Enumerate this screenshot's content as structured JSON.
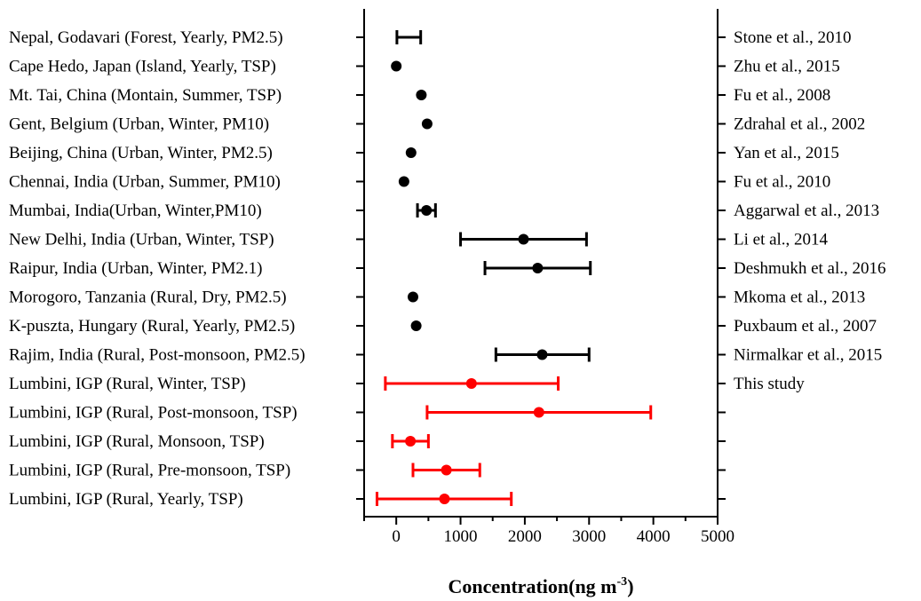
{
  "chart_data": {
    "type": "scatter",
    "subtype": "horizontal error-bar (forest) plot",
    "title": "",
    "xlabel": "Concentration(ng m-3)",
    "xlabel_parts": {
      "main": "Concentration(ng m",
      "sup": "-3",
      "close": ")"
    },
    "ylabel": "",
    "xlim": [
      -500,
      5000
    ],
    "xticks": [
      0,
      1000,
      2000,
      3000,
      4000,
      5000
    ],
    "minor_xticks": [
      -500,
      500,
      1500,
      2500,
      3500,
      4500
    ],
    "grid": false,
    "legend": "none",
    "colors": {
      "literature": "#000000",
      "this_study": "#ff0000"
    },
    "rows": [
      {
        "label": "Nepal, Godavari (Forest, Yearly, PM2.5)",
        "reference": "Stone et al., 2010",
        "value": 180,
        "err_low": 10,
        "err_high": 380,
        "color": "#000000",
        "marker": false
      },
      {
        "label": "Cape Hedo, Japan (Island, Yearly, TSP)",
        "reference": "Zhu et al., 2015",
        "value": 0,
        "err_low": null,
        "err_high": null,
        "color": "#000000",
        "marker": true
      },
      {
        "label": "Mt. Tai, China (Montain, Summer, TSP)",
        "reference": "Fu et al., 2008",
        "value": 390,
        "err_low": null,
        "err_high": null,
        "color": "#000000",
        "marker": true
      },
      {
        "label": "Gent, Belgium (Urban, Winter, PM10)",
        "reference": "Zdrahal et al., 2002",
        "value": 480,
        "err_low": null,
        "err_high": null,
        "color": "#000000",
        "marker": true
      },
      {
        "label": "Beijing, China (Urban, Winter, PM2.5)",
        "reference": "Yan et al., 2015",
        "value": 230,
        "err_low": null,
        "err_high": null,
        "color": "#000000",
        "marker": true
      },
      {
        "label": "Chennai, India (Urban, Summer, PM10)",
        "reference": "Fu et al., 2010",
        "value": 120,
        "err_low": null,
        "err_high": null,
        "color": "#000000",
        "marker": true
      },
      {
        "label": "Mumbai, India(Urban, Winter,PM10)",
        "reference": "Aggarwal et al., 2013",
        "value": 470,
        "err_low": 330,
        "err_high": 610,
        "color": "#000000",
        "marker": true
      },
      {
        "label": "New Delhi,  India (Urban, Winter, TSP)",
        "reference": "Li et al., 2014",
        "value": 1980,
        "err_low": 1000,
        "err_high": 2960,
        "color": "#000000",
        "marker": true
      },
      {
        "label": "Raipur,  India (Urban, Winter, PM2.1)",
        "reference": "Deshmukh et al., 2016",
        "value": 2200,
        "err_low": 1380,
        "err_high": 3020,
        "color": "#000000",
        "marker": true
      },
      {
        "label": "Morogoro, Tanzania (Rural, Dry, PM2.5)",
        "reference": "Mkoma et al., 2013",
        "value": 260,
        "err_low": null,
        "err_high": null,
        "color": "#000000",
        "marker": true
      },
      {
        "label": "K-puszta, Hungary (Rural, Yearly, PM2.5)",
        "reference": "Puxbaum et al., 2007",
        "value": 310,
        "err_low": null,
        "err_high": null,
        "color": "#000000",
        "marker": true
      },
      {
        "label": "Rajim, India (Rural, Post-monsoon, PM2.5)",
        "reference": "Nirmalkar et al., 2015",
        "value": 2270,
        "err_low": 1550,
        "err_high": 3000,
        "color": "#000000",
        "marker": true
      },
      {
        "label": "Lumbini, IGP (Rural, Winter, TSP)",
        "reference": "This study",
        "value": 1170,
        "err_low": -170,
        "err_high": 2520,
        "color": "#ff0000",
        "marker": true
      },
      {
        "label": "Lumbini, IGP (Rural, Post-monsoon, TSP)",
        "reference": "",
        "value": 2220,
        "err_low": 480,
        "err_high": 3960,
        "color": "#ff0000",
        "marker": true
      },
      {
        "label": "Lumbini, IGP (Rural, Monsoon, TSP)",
        "reference": "",
        "value": 220,
        "err_low": -60,
        "err_high": 500,
        "color": "#ff0000",
        "marker": true
      },
      {
        "label": "Lumbini, IGP (Rural, Pre-monsoon, TSP)",
        "reference": "",
        "value": 780,
        "err_low": 260,
        "err_high": 1300,
        "color": "#ff0000",
        "marker": true
      },
      {
        "label": "Lumbini, IGP (Rural, Yearly, TSP)",
        "reference": "",
        "value": 750,
        "err_low": -300,
        "err_high": 1790,
        "color": "#ff0000",
        "marker": true
      }
    ]
  }
}
